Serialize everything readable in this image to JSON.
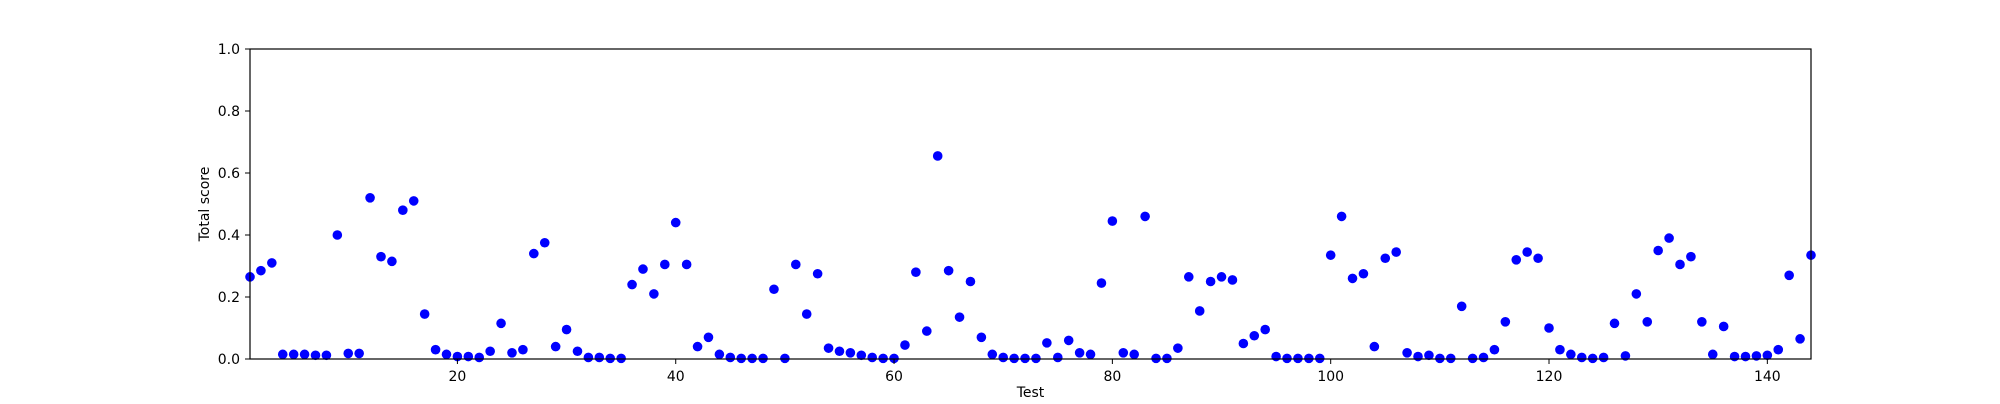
{
  "colors": {
    "point": "#0000ff",
    "axis": "#000000",
    "background": "#ffffff"
  },
  "chart_data": {
    "type": "scatter",
    "title": "",
    "xlabel": "Test",
    "ylabel": "Total score",
    "xlim": [
      1,
      144
    ],
    "ylim": [
      0.0,
      1.0
    ],
    "grid": false,
    "x_ticks": [
      20,
      40,
      60,
      80,
      100,
      120,
      140
    ],
    "y_ticks": [
      0.0,
      0.2,
      0.4,
      0.6,
      0.8,
      1.0
    ],
    "x_tick_labels": [
      "20",
      "40",
      "60",
      "80",
      "100",
      "120",
      "140"
    ],
    "y_tick_labels": [
      "0.0",
      "0.2",
      "0.4",
      "0.6",
      "0.8",
      "1.0"
    ],
    "series": [
      {
        "marker": "circle",
        "color": "#0000ff",
        "points": [
          [
            1,
            0.265
          ],
          [
            2,
            0.285
          ],
          [
            3,
            0.31
          ],
          [
            4,
            0.015
          ],
          [
            5,
            0.015
          ],
          [
            6,
            0.015
          ],
          [
            7,
            0.012
          ],
          [
            8,
            0.012
          ],
          [
            9,
            0.4
          ],
          [
            10,
            0.018
          ],
          [
            11,
            0.018
          ],
          [
            12,
            0.52
          ],
          [
            13,
            0.33
          ],
          [
            14,
            0.315
          ],
          [
            15,
            0.48
          ],
          [
            16,
            0.51
          ],
          [
            17,
            0.145
          ],
          [
            18,
            0.03
          ],
          [
            19,
            0.015
          ],
          [
            20,
            0.008
          ],
          [
            21,
            0.008
          ],
          [
            22,
            0.005
          ],
          [
            23,
            0.025
          ],
          [
            24,
            0.115
          ],
          [
            25,
            0.02
          ],
          [
            26,
            0.03
          ],
          [
            27,
            0.34
          ],
          [
            28,
            0.375
          ],
          [
            29,
            0.04
          ],
          [
            30,
            0.095
          ],
          [
            31,
            0.025
          ],
          [
            32,
            0.005
          ],
          [
            33,
            0.005
          ],
          [
            34,
            0.002
          ],
          [
            35,
            0.002
          ],
          [
            36,
            0.24
          ],
          [
            37,
            0.29
          ],
          [
            38,
            0.21
          ],
          [
            39,
            0.305
          ],
          [
            40,
            0.44
          ],
          [
            41,
            0.305
          ],
          [
            42,
            0.04
          ],
          [
            43,
            0.07
          ],
          [
            44,
            0.015
          ],
          [
            45,
            0.005
          ],
          [
            46,
            0.002
          ],
          [
            47,
            0.002
          ],
          [
            48,
            0.002
          ],
          [
            49,
            0.225
          ],
          [
            50,
            0.002
          ],
          [
            51,
            0.305
          ],
          [
            52,
            0.145
          ],
          [
            53,
            0.275
          ],
          [
            54,
            0.035
          ],
          [
            55,
            0.025
          ],
          [
            56,
            0.02
          ],
          [
            57,
            0.012
          ],
          [
            58,
            0.005
          ],
          [
            59,
            0.002
          ],
          [
            60,
            0.002
          ],
          [
            61,
            0.045
          ],
          [
            62,
            0.28
          ],
          [
            63,
            0.09
          ],
          [
            64,
            0.655
          ],
          [
            65,
            0.285
          ],
          [
            66,
            0.135
          ],
          [
            67,
            0.25
          ],
          [
            68,
            0.07
          ],
          [
            69,
            0.015
          ],
          [
            70,
            0.005
          ],
          [
            71,
            0.002
          ],
          [
            72,
            0.002
          ],
          [
            73,
            0.002
          ],
          [
            74,
            0.052
          ],
          [
            75,
            0.005
          ],
          [
            76,
            0.06
          ],
          [
            77,
            0.02
          ],
          [
            78,
            0.015
          ],
          [
            79,
            0.245
          ],
          [
            80,
            0.445
          ],
          [
            81,
            0.02
          ],
          [
            82,
            0.015
          ],
          [
            83,
            0.46
          ],
          [
            84,
            0.002
          ],
          [
            85,
            0.002
          ],
          [
            86,
            0.035
          ],
          [
            87,
            0.265
          ],
          [
            88,
            0.155
          ],
          [
            89,
            0.25
          ],
          [
            90,
            0.265
          ],
          [
            91,
            0.255
          ],
          [
            92,
            0.05
          ],
          [
            93,
            0.075
          ],
          [
            94,
            0.095
          ],
          [
            95,
            0.008
          ],
          [
            96,
            0.002
          ],
          [
            97,
            0.002
          ],
          [
            98,
            0.002
          ],
          [
            99,
            0.002
          ],
          [
            100,
            0.335
          ],
          [
            101,
            0.46
          ],
          [
            102,
            0.26
          ],
          [
            103,
            0.275
          ],
          [
            104,
            0.04
          ],
          [
            105,
            0.325
          ],
          [
            106,
            0.345
          ],
          [
            107,
            0.02
          ],
          [
            108,
            0.008
          ],
          [
            109,
            0.012
          ],
          [
            110,
            0.002
          ],
          [
            111,
            0.002
          ],
          [
            112,
            0.17
          ],
          [
            113,
            0.002
          ],
          [
            114,
            0.005
          ],
          [
            115,
            0.03
          ],
          [
            116,
            0.12
          ],
          [
            117,
            0.32
          ],
          [
            118,
            0.345
          ],
          [
            119,
            0.325
          ],
          [
            120,
            0.1
          ],
          [
            121,
            0.03
          ],
          [
            122,
            0.015
          ],
          [
            123,
            0.005
          ],
          [
            124,
            0.002
          ],
          [
            125,
            0.005
          ],
          [
            126,
            0.115
          ],
          [
            127,
            0.01
          ],
          [
            128,
            0.21
          ],
          [
            129,
            0.12
          ],
          [
            130,
            0.35
          ],
          [
            131,
            0.39
          ],
          [
            132,
            0.305
          ],
          [
            133,
            0.33
          ],
          [
            134,
            0.12
          ],
          [
            135,
            0.015
          ],
          [
            136,
            0.105
          ],
          [
            137,
            0.008
          ],
          [
            138,
            0.008
          ],
          [
            139,
            0.01
          ],
          [
            140,
            0.012
          ],
          [
            141,
            0.03
          ],
          [
            142,
            0.27
          ],
          [
            143,
            0.065
          ],
          [
            144,
            0.335
          ]
        ]
      }
    ]
  }
}
